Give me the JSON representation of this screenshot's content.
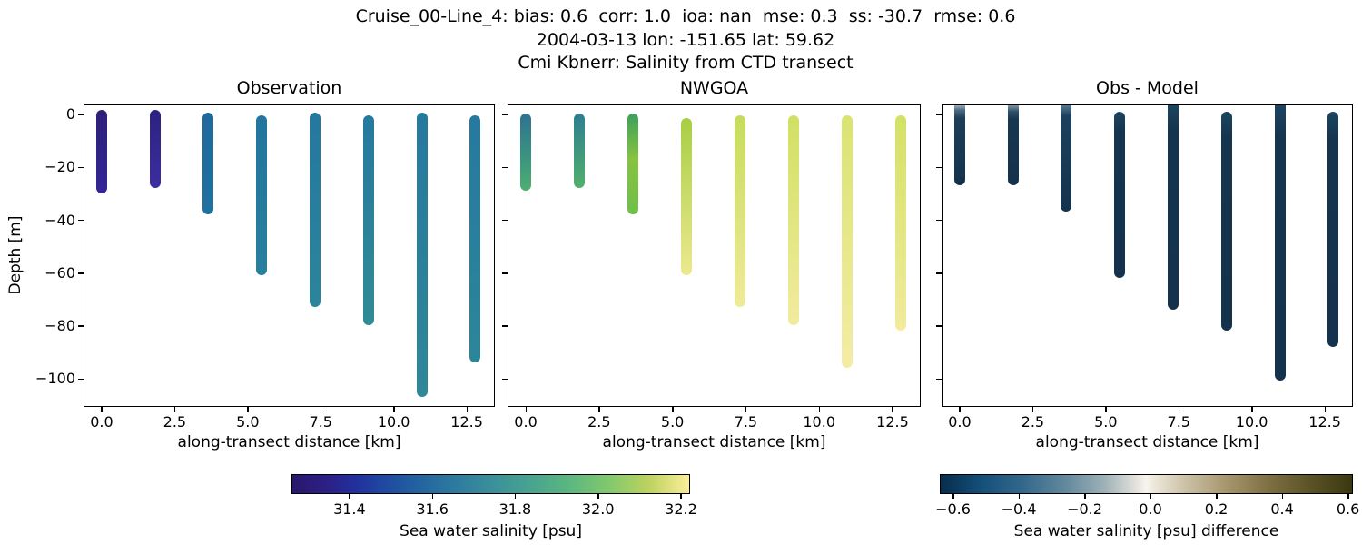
{
  "header": {
    "line1": "Cruise_00-Line_4: bias: 0.6  corr: 1.0  ioa: nan  mse: 0.3  ss: -30.7  rmse: 0.6",
    "line2": "2004-03-13 lon: -151.65 lat: 59.62",
    "line3": "Cmi Kbnerr: Salinity from CTD transect"
  },
  "chart_data": {
    "type": "scatter",
    "description": "Three vertical-profile scatter panels of salinity along a CTD transect; columns of dots from near-surface down to station bottom depth, colored by salinity (left two panels) and by obs-model difference (right panel).",
    "shared": {
      "xlabel": "along-transect distance [km]",
      "ylabel": "Depth [m]",
      "xlim": [
        -0.62,
        13.46
      ],
      "ylim": [
        3.8,
        -110.5
      ],
      "xticks": {
        "values": [
          0.0,
          2.5,
          5.0,
          7.5,
          10.0,
          12.5
        ],
        "labels": [
          "0.0",
          "2.5",
          "5.0",
          "7.5",
          "10.0",
          "12.5"
        ]
      },
      "yticks": {
        "values": [
          0,
          -20,
          -40,
          -60,
          -80,
          -100
        ],
        "labels": [
          "0",
          "−20",
          "−40",
          "−60",
          "−80",
          "−100"
        ]
      }
    },
    "panels": [
      {
        "title": "Observation",
        "show_ytick_labels": true,
        "columns": [
          {
            "x": 0.0,
            "top": 0,
            "bottom": -28,
            "stops": [
              [
                0,
                "#2c2076"
              ],
              [
                100,
                "#332696"
              ]
            ]
          },
          {
            "x": 1.83,
            "top": 0,
            "bottom": -26,
            "stops": [
              [
                0,
                "#2d2180"
              ],
              [
                100,
                "#3b2da2"
              ]
            ]
          },
          {
            "x": 3.65,
            "top": -1,
            "bottom": -36,
            "stops": [
              [
                0,
                "#1f689c"
              ],
              [
                100,
                "#21719e"
              ]
            ]
          },
          {
            "x": 5.48,
            "top": -2,
            "bottom": -59,
            "stops": [
              [
                0,
                "#22759e"
              ],
              [
                100,
                "#27809c"
              ]
            ]
          },
          {
            "x": 7.31,
            "top": -1,
            "bottom": -71,
            "stops": [
              [
                0,
                "#25789e"
              ],
              [
                100,
                "#2b859a"
              ]
            ]
          },
          {
            "x": 9.13,
            "top": -2,
            "bottom": -78,
            "stops": [
              [
                0,
                "#26799e"
              ],
              [
                100,
                "#318b95"
              ]
            ]
          },
          {
            "x": 10.96,
            "top": -1,
            "bottom": -105,
            "stops": [
              [
                0,
                "#26799e"
              ],
              [
                100,
                "#2e8898"
              ]
            ]
          },
          {
            "x": 12.79,
            "top": -2,
            "bottom": -92,
            "stops": [
              [
                0,
                "#26799e"
              ],
              [
                100,
                "#2c8699"
              ]
            ]
          }
        ]
      },
      {
        "title": "NWGOA",
        "show_ytick_labels": false,
        "columns": [
          {
            "x": 0.0,
            "top": -1.5,
            "bottom": -27,
            "stops": [
              [
                0,
                "#2e7292"
              ],
              [
                55,
                "#3a9380"
              ],
              [
                100,
                "#4fae70"
              ]
            ]
          },
          {
            "x": 1.83,
            "top": -1.5,
            "bottom": -26,
            "stops": [
              [
                0,
                "#2f7d91"
              ],
              [
                100,
                "#51b06b"
              ]
            ]
          },
          {
            "x": 3.65,
            "top": -1.5,
            "bottom": -36,
            "stops": [
              [
                0,
                "#3da05a"
              ],
              [
                45,
                "#86c340"
              ],
              [
                100,
                "#6fbf4a"
              ]
            ]
          },
          {
            "x": 5.48,
            "top": -3,
            "bottom": -59,
            "stops": [
              [
                0,
                "#a8ce45"
              ],
              [
                100,
                "#ece98f"
              ]
            ]
          },
          {
            "x": 7.31,
            "top": -2,
            "bottom": -71,
            "stops": [
              [
                0,
                "#c6dc5c"
              ],
              [
                100,
                "#f0ea9a"
              ]
            ]
          },
          {
            "x": 9.13,
            "top": -2,
            "bottom": -78,
            "stops": [
              [
                0,
                "#d0e063"
              ],
              [
                100,
                "#f2eb9f"
              ]
            ]
          },
          {
            "x": 10.96,
            "top": -2,
            "bottom": -94,
            "stops": [
              [
                0,
                "#d9e470"
              ],
              [
                100,
                "#f4eca4"
              ]
            ]
          },
          {
            "x": 12.79,
            "top": -2,
            "bottom": -80,
            "stops": [
              [
                0,
                "#d3e166"
              ],
              [
                100,
                "#f2eb9e"
              ]
            ]
          }
        ]
      },
      {
        "title": "Obs - Model",
        "show_ytick_labels": false,
        "columns": [
          {
            "x": 0.0,
            "clip_top": true,
            "top": 3.8,
            "bottom": -25,
            "stops": [
              [
                0,
                "#a2adb7"
              ],
              [
                6,
                "#4a6c83"
              ],
              [
                16,
                "#1d3d58"
              ],
              [
                100,
                "#14324c"
              ]
            ]
          },
          {
            "x": 1.83,
            "clip_top": true,
            "top": 3.8,
            "bottom": -25,
            "stops": [
              [
                0,
                "#7f94a3"
              ],
              [
                8,
                "#2d5069"
              ],
              [
                18,
                "#17364f"
              ],
              [
                100,
                "#14324c"
              ]
            ]
          },
          {
            "x": 3.65,
            "clip_top": true,
            "top": 3.8,
            "bottom": -35,
            "stops": [
              [
                0,
                "#57788e"
              ],
              [
                10,
                "#1d415c"
              ],
              [
                100,
                "#14324c"
              ]
            ]
          },
          {
            "x": 5.48,
            "clip_top": false,
            "top": -0.5,
            "bottom": -60,
            "stops": [
              [
                0,
                "#1c4560"
              ],
              [
                12,
                "#15344e"
              ],
              [
                100,
                "#14324c"
              ]
            ]
          },
          {
            "x": 7.31,
            "clip_top": true,
            "top": 3.8,
            "bottom": -72,
            "stops": [
              [
                0,
                "#1c4560"
              ],
              [
                12,
                "#15344e"
              ],
              [
                100,
                "#14324c"
              ]
            ]
          },
          {
            "x": 9.13,
            "clip_top": false,
            "top": -0.5,
            "bottom": -80,
            "stops": [
              [
                0,
                "#1c4560"
              ],
              [
                12,
                "#15344e"
              ],
              [
                100,
                "#14324c"
              ]
            ]
          },
          {
            "x": 10.96,
            "clip_top": true,
            "top": 3.8,
            "bottom": -99,
            "stops": [
              [
                0,
                "#1c4560"
              ],
              [
                12,
                "#15344e"
              ],
              [
                100,
                "#14324c"
              ]
            ]
          },
          {
            "x": 12.79,
            "clip_top": false,
            "top": -0.5,
            "bottom": -86,
            "stops": [
              [
                0,
                "#1c4560"
              ],
              [
                12,
                "#15344e"
              ],
              [
                100,
                "#14324c"
              ]
            ]
          }
        ]
      }
    ]
  },
  "colorbars": [
    {
      "label": "Sea water salinity [psu]",
      "vmin": 31.26,
      "vmax": 32.222,
      "ticks": {
        "values": [
          31.4,
          31.6,
          31.8,
          32.0,
          32.2
        ],
        "labels": [
          "31.4",
          "31.6",
          "31.8",
          "32.0",
          "32.2"
        ]
      },
      "stops": [
        [
          0,
          "#2a186c"
        ],
        [
          8,
          "#2d1e84"
        ],
        [
          16,
          "#22309c"
        ],
        [
          22,
          "#1f45a2"
        ],
        [
          30,
          "#215ea0"
        ],
        [
          40,
          "#2c789f"
        ],
        [
          50,
          "#3a8f9b"
        ],
        [
          60,
          "#48a390"
        ],
        [
          70,
          "#5cb781"
        ],
        [
          80,
          "#83c96c"
        ],
        [
          90,
          "#bed25f"
        ],
        [
          100,
          "#fcee9a"
        ]
      ]
    },
    {
      "label": "Sea water salinity [psu] difference",
      "vmin": -0.64,
      "vmax": 0.615,
      "ticks": {
        "values": [
          -0.6,
          -0.4,
          -0.2,
          0.0,
          0.2,
          0.4,
          0.6
        ],
        "labels": [
          "−0.6",
          "−0.4",
          "−0.2",
          "0.0",
          "0.2",
          "0.4",
          "0.6"
        ]
      },
      "stops": [
        [
          0,
          "#072c4b"
        ],
        [
          10,
          "#14507a"
        ],
        [
          20,
          "#33688b"
        ],
        [
          30,
          "#60879c"
        ],
        [
          40,
          "#9fb2b8"
        ],
        [
          48,
          "#e8e5dd"
        ],
        [
          50,
          "#f7f5ef"
        ],
        [
          52,
          "#ece7da"
        ],
        [
          60,
          "#c9bfa2"
        ],
        [
          70,
          "#a4946b"
        ],
        [
          80,
          "#7d6f42"
        ],
        [
          90,
          "#5a5226"
        ],
        [
          100,
          "#3c380f"
        ]
      ]
    }
  ]
}
